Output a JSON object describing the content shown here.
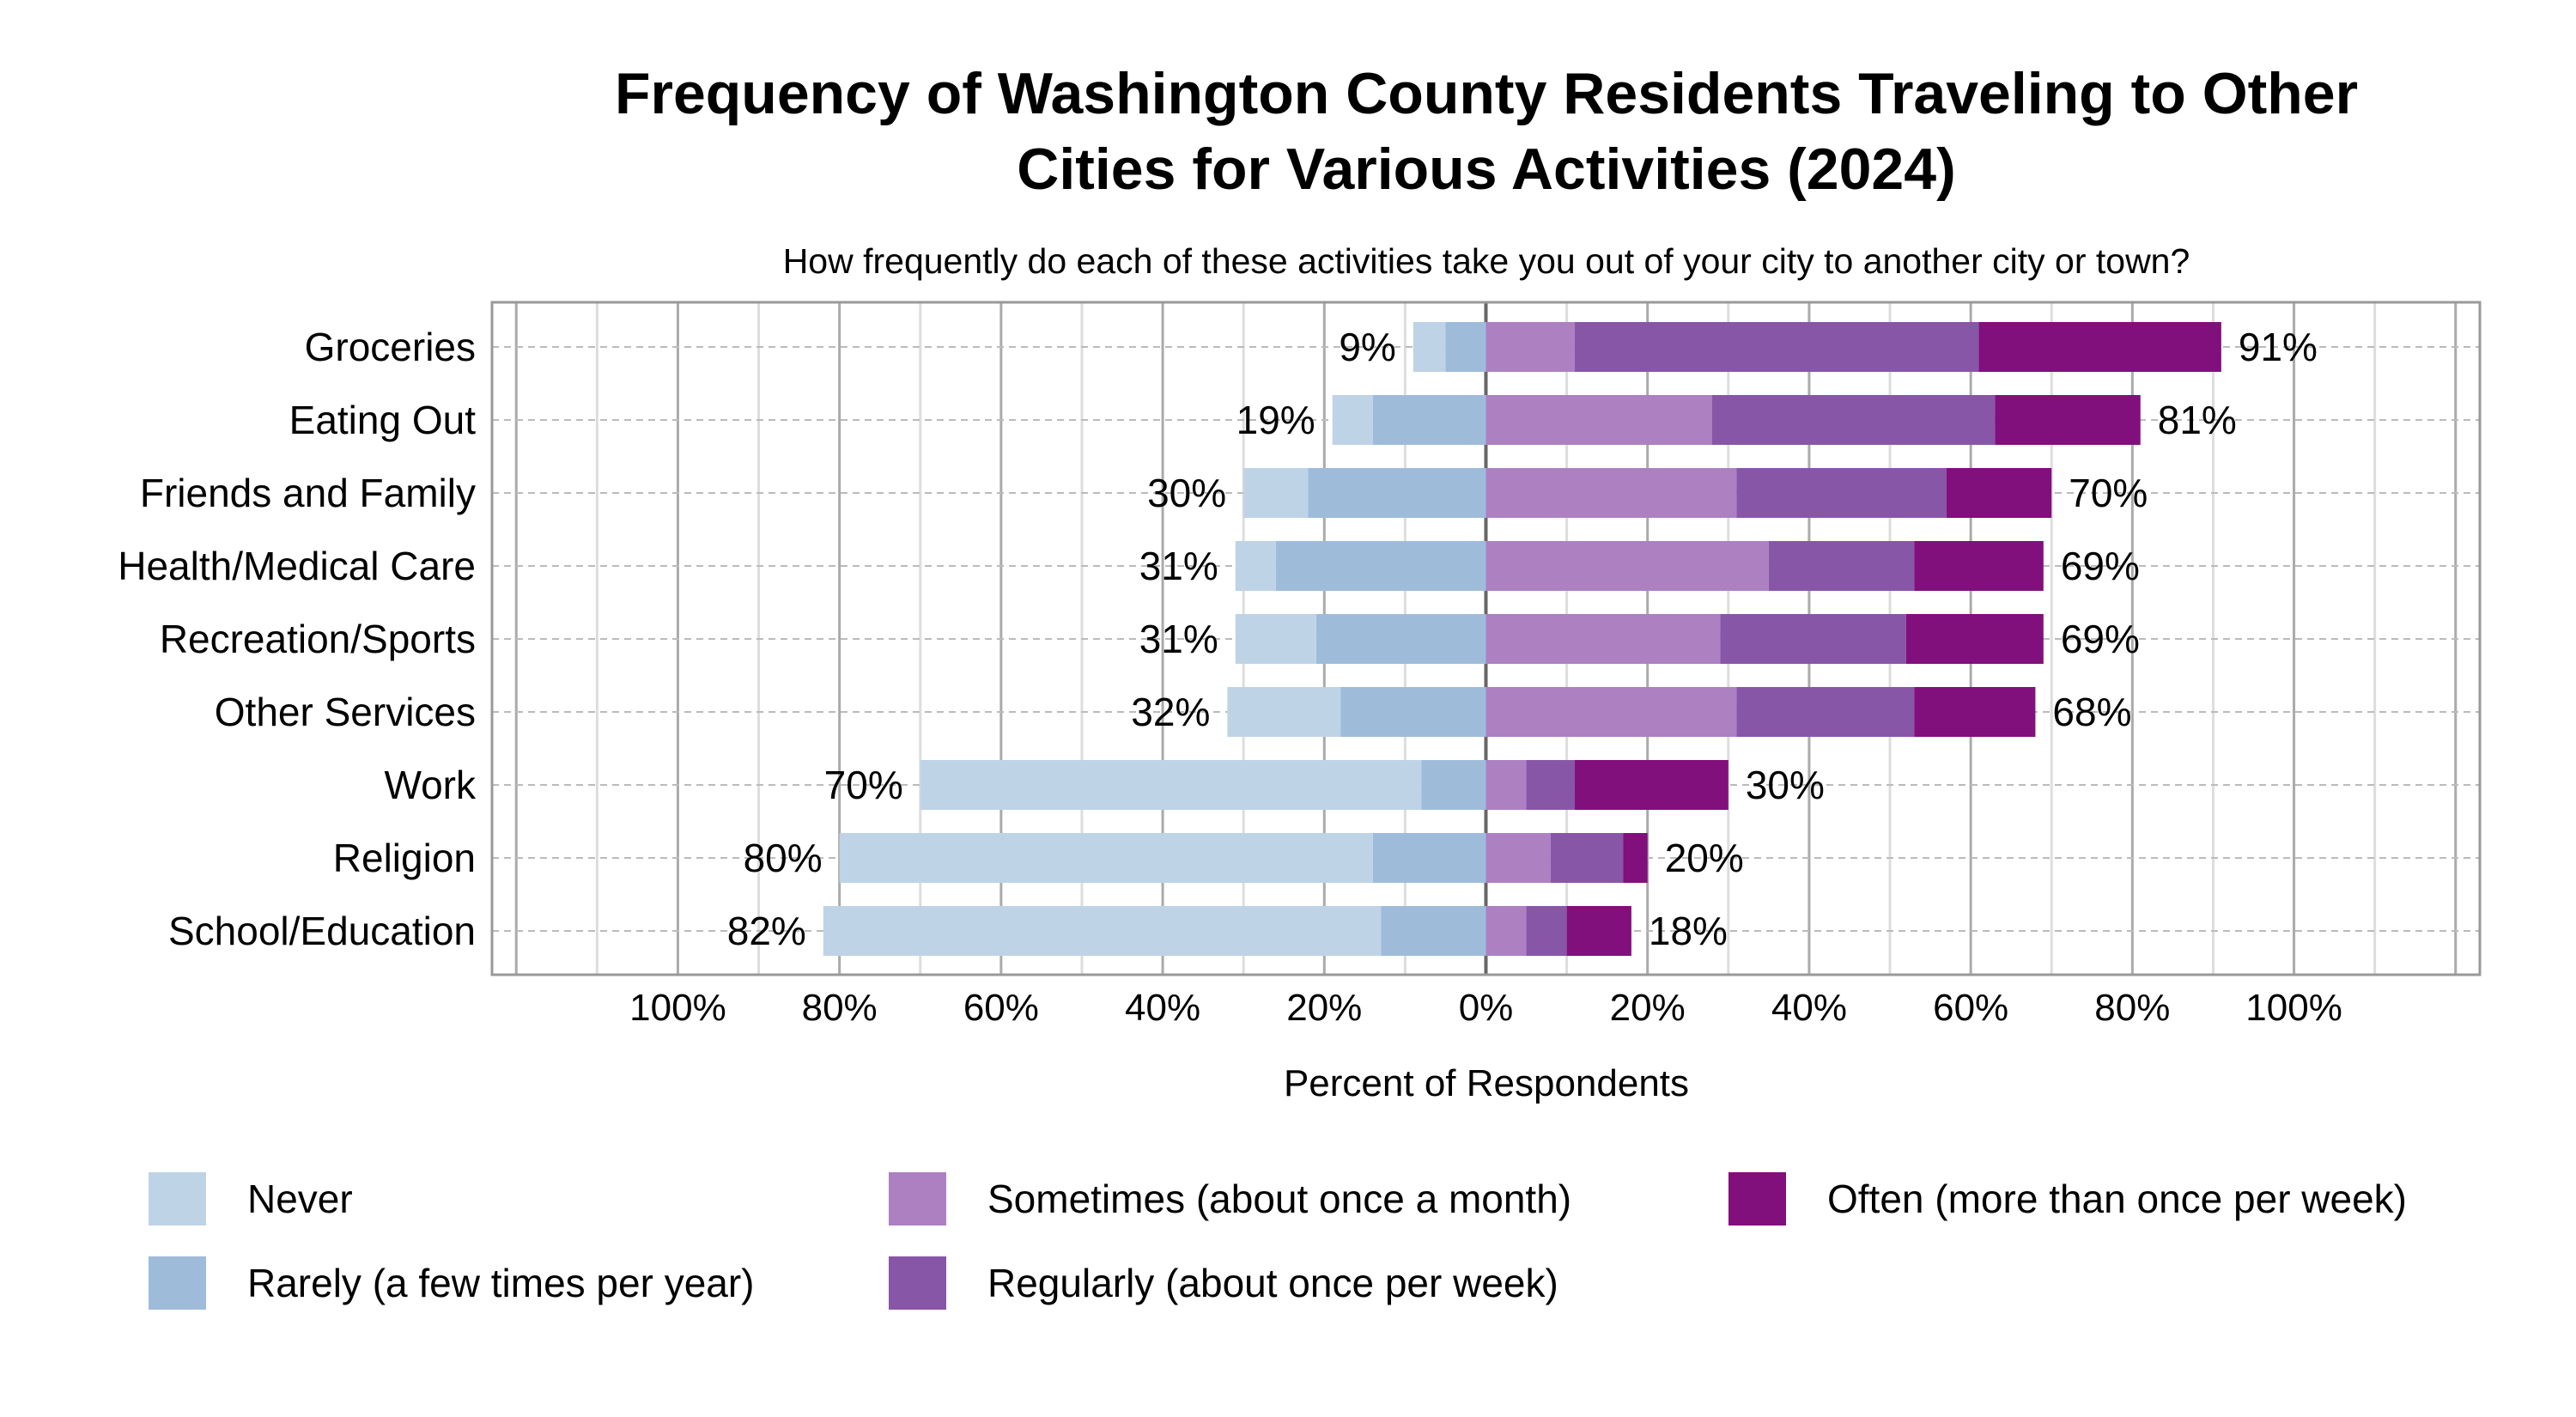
{
  "chart_data": {
    "type": "bar",
    "orientation": "horizontal-diverging-stacked",
    "title": "Frequency of Washington County Residents Traveling to Other Cities for Various Activities (2024)",
    "title_lines": [
      "Frequency of Washington County Residents Traveling to Other",
      "Cities for Various Activities (2024)"
    ],
    "subtitle": "How frequently do each of these activities take you out of your city to another city or town?",
    "xlabel": "Percent of Respondents",
    "xlim": [
      -123,
      123
    ],
    "x_ticks": [
      -100,
      -80,
      -60,
      -40,
      -20,
      0,
      20,
      40,
      60,
      80,
      100
    ],
    "x_tick_labels": [
      "100%",
      "80%",
      "60%",
      "40%",
      "20%",
      "0%",
      "20%",
      "40%",
      "60%",
      "80%",
      "100%"
    ],
    "grid": true,
    "legend_position": "bottom",
    "categories": [
      "Groceries",
      "Eating Out",
      "Friends and Family",
      "Health/Medical Care",
      "Recreation/Sports",
      "Other Services",
      "Work",
      "Religion",
      "School/Education"
    ],
    "negative_series": [
      {
        "name": "Never",
        "color": "#bfd3e6",
        "values": [
          4,
          5,
          8,
          5,
          10,
          14,
          62,
          66,
          69
        ]
      },
      {
        "name": "Rarely (a few times per year)",
        "color": "#9ebcda",
        "values": [
          5,
          14,
          22,
          26,
          21,
          18,
          8,
          14,
          13
        ]
      }
    ],
    "positive_series": [
      {
        "name": "Sometimes (about once a month)",
        "color": "#ac80c1",
        "values": [
          11,
          28,
          31,
          35,
          29,
          31,
          5,
          8,
          5
        ]
      },
      {
        "name": "Regularly (about once per week)",
        "color": "#8856a7",
        "values": [
          50,
          35,
          26,
          18,
          23,
          22,
          6,
          9,
          5
        ]
      },
      {
        "name": "Often (more than once per week)",
        "color": "#810f7c",
        "values": [
          30,
          18,
          13,
          16,
          17,
          15,
          19,
          3,
          8
        ]
      }
    ],
    "negative_totals": [
      "9%",
      "19%",
      "30%",
      "31%",
      "31%",
      "32%",
      "70%",
      "80%",
      "82%"
    ],
    "positive_totals": [
      "91%",
      "81%",
      "70%",
      "69%",
      "69%",
      "68%",
      "30%",
      "20%",
      "18%"
    ]
  },
  "legend": [
    {
      "label": "Never",
      "color": "#bfd3e6"
    },
    {
      "label": "Rarely (a few times per year)",
      "color": "#9ebcda"
    },
    {
      "label": "Sometimes (about once a month)",
      "color": "#ac80c1"
    },
    {
      "label": "Regularly (about once per week)",
      "color": "#8856a7"
    },
    {
      "label": "Often (more than once per week)",
      "color": "#810f7c"
    }
  ]
}
